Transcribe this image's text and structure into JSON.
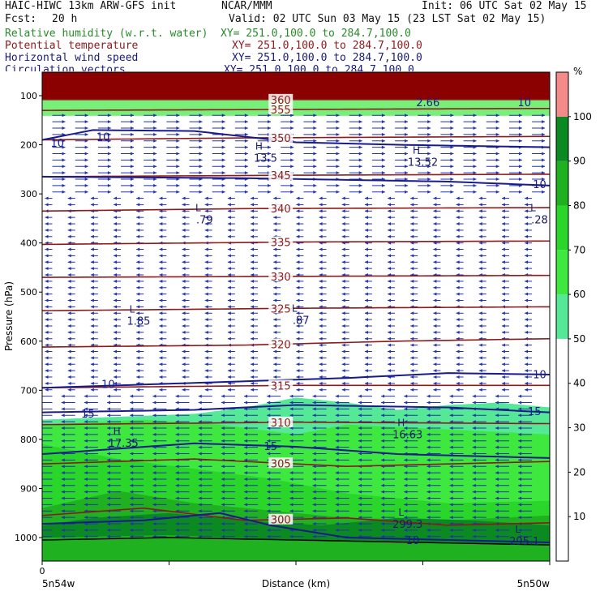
{
  "header": {
    "title": "HAIC-HIWC 13km ARW-GFS init",
    "org": "NCAR/MMM",
    "init": "Init: 06 UTC Sat 02 May 15",
    "fcst_label": "Fcst:",
    "fcst_value": "20 h",
    "valid": "Valid: 02 UTC Sun 03 May 15 (23 LST Sat 02 May 15)"
  },
  "fields": [
    {
      "name": "Relative humidity (w.r.t. water)",
      "xy": "XY= 251.0,100.0 to 284.7,100.0",
      "color": "#2a8a2a"
    },
    {
      "name": "Potential temperature",
      "xy": "XY= 251.0,100.0 to 284.7,100.0",
      "color": "#8b1a1a"
    },
    {
      "name": "Horizontal wind speed",
      "xy": "XY= 251.0,100.0 to 284.7,100.0",
      "color": "#1a1a7a"
    },
    {
      "name": "Circulation vectors",
      "xy": "XY= 251.0,100.0 to 284.7,100.0",
      "color": "#1a1a7a"
    }
  ],
  "chart_data": {
    "type": "heatmap",
    "ylabel": "Pressure (hPa)",
    "xlabel": "Distance (km)",
    "x_start_tick": "0",
    "x_left_label": "5n54w",
    "x_right_label": "5n50w",
    "y_ticks": [
      100,
      200,
      300,
      400,
      500,
      600,
      700,
      800,
      900,
      1000
    ],
    "y_range": [
      50,
      1050
    ],
    "x_range": [
      0,
      1
    ],
    "colorbar": {
      "unit": "%",
      "ticks": [
        10,
        20,
        30,
        40,
        50,
        60,
        70,
        80,
        90,
        100
      ],
      "bands": [
        {
          "from": 50,
          "to": 60,
          "color": "#55e896"
        },
        {
          "from": 60,
          "to": 70,
          "color": "#3ee83e"
        },
        {
          "from": 70,
          "to": 80,
          "color": "#2bd62b"
        },
        {
          "from": 80,
          "to": 90,
          "color": "#1fb11f"
        },
        {
          "from": 90,
          "to": 100,
          "color": "#0c8a22"
        },
        {
          "from": 100,
          "to": 110,
          "color": "#f48a8a"
        }
      ]
    },
    "rh_regions": [
      {
        "color": "#55e896",
        "top": [
          [
            0,
            760
          ],
          [
            0.3,
            748
          ],
          [
            0.4,
            735
          ],
          [
            0.5,
            715
          ],
          [
            0.6,
            725
          ],
          [
            0.7,
            740
          ],
          [
            0.8,
            730
          ],
          [
            0.9,
            725
          ],
          [
            1,
            735
          ]
        ],
        "bottom": 1050
      },
      {
        "color": "#3ee83e",
        "top": [
          [
            0,
            770
          ],
          [
            0.2,
            760
          ],
          [
            0.35,
            770
          ],
          [
            0.5,
            790
          ],
          [
            0.6,
            770
          ],
          [
            0.8,
            780
          ],
          [
            1,
            790
          ]
        ],
        "bottom": 1050
      },
      {
        "color": "#2bd62b",
        "top": [
          [
            0,
            810
          ],
          [
            0.15,
            840
          ],
          [
            0.3,
            860
          ],
          [
            0.45,
            880
          ],
          [
            0.6,
            910
          ],
          [
            0.8,
            930
          ],
          [
            1,
            925
          ]
        ],
        "bottom": 1050
      },
      {
        "color": "#1fb11f",
        "top": [
          [
            0,
            940
          ],
          [
            0.15,
            905
          ],
          [
            0.3,
            930
          ],
          [
            0.45,
            945
          ],
          [
            0.6,
            960
          ],
          [
            0.8,
            965
          ],
          [
            1,
            955
          ]
        ],
        "bottom": 1050
      },
      {
        "color": "#0c8a22",
        "top": [
          [
            0,
            975
          ],
          [
            0.1,
            960
          ],
          [
            0.25,
            950
          ],
          [
            0.4,
            965
          ],
          [
            0.55,
            975
          ],
          [
            0.7,
            960
          ],
          [
            0.85,
            965
          ],
          [
            1,
            975
          ]
        ],
        "bottom": [
          [
            0,
            1000
          ],
          [
            0.25,
            995
          ],
          [
            0.5,
            1005
          ],
          [
            0.75,
            1010
          ],
          [
            1,
            1015
          ]
        ]
      }
    ],
    "upper_band": {
      "color": "#8b0000",
      "from": 60,
      "to": 108
    },
    "theta_contours": [
      {
        "label": "360",
        "pts": [
          [
            0,
            108
          ],
          [
            1,
            108
          ]
        ]
      },
      {
        "label": "355",
        "pts": [
          [
            0,
            130
          ],
          [
            0.5,
            128
          ],
          [
            1,
            126
          ]
        ]
      },
      {
        "label": "350",
        "pts": [
          [
            0,
            190
          ],
          [
            0.4,
            186
          ],
          [
            1,
            183
          ]
        ]
      },
      {
        "label": "345",
        "pts": [
          [
            0,
            265
          ],
          [
            0.5,
            262
          ],
          [
            1,
            260
          ]
        ]
      },
      {
        "label": "340",
        "pts": [
          [
            0,
            335
          ],
          [
            0.4,
            330
          ],
          [
            1,
            328
          ]
        ]
      },
      {
        "label": "335",
        "pts": [
          [
            0,
            403
          ],
          [
            0.5,
            398
          ],
          [
            1,
            396
          ]
        ]
      },
      {
        "label": "330",
        "pts": [
          [
            0,
            470
          ],
          [
            0.5,
            468
          ],
          [
            1,
            466
          ]
        ]
      },
      {
        "label": "325",
        "pts": [
          [
            0,
            538
          ],
          [
            0.5,
            533
          ],
          [
            1,
            530
          ]
        ]
      },
      {
        "label": "320",
        "pts": [
          [
            0,
            612
          ],
          [
            0.4,
            608
          ],
          [
            0.7,
            600
          ],
          [
            1,
            595
          ]
        ]
      },
      {
        "label": "315",
        "pts": [
          [
            0,
            695
          ],
          [
            0.5,
            690
          ],
          [
            1,
            690
          ]
        ]
      },
      {
        "label": "310",
        "pts": [
          [
            0,
            770
          ],
          [
            0.5,
            765
          ],
          [
            1,
            768
          ]
        ]
      },
      {
        "label": "305",
        "pts": [
          [
            0,
            850
          ],
          [
            0.3,
            840
          ],
          [
            0.6,
            855
          ],
          [
            1,
            845
          ]
        ]
      },
      {
        "label": "300",
        "pts": [
          [
            0,
            955
          ],
          [
            0.2,
            940
          ],
          [
            0.4,
            965
          ],
          [
            0.6,
            960
          ],
          [
            0.8,
            975
          ],
          [
            1,
            970
          ]
        ]
      }
    ],
    "wind_contours": [
      {
        "label": "10",
        "pts": [
          [
            0,
            190
          ],
          [
            0.1,
            170
          ],
          [
            0.3,
            172
          ],
          [
            0.5,
            195
          ],
          [
            0.7,
            200
          ],
          [
            1,
            205
          ]
        ]
      },
      {
        "label": "10",
        "pts": [
          [
            0,
            265
          ],
          [
            0.4,
            268
          ],
          [
            0.8,
            275
          ],
          [
            1,
            283
          ]
        ]
      },
      {
        "label": "10",
        "pts": [
          [
            0,
            695
          ],
          [
            0.3,
            685
          ],
          [
            0.6,
            675
          ],
          [
            0.8,
            665
          ],
          [
            1,
            668
          ]
        ]
      },
      {
        "label": "15",
        "pts": [
          [
            0,
            745
          ],
          [
            0.3,
            740
          ],
          [
            0.5,
            730
          ],
          [
            0.8,
            735
          ],
          [
            1,
            745
          ]
        ]
      },
      {
        "label": "15",
        "pts": [
          [
            0,
            830
          ],
          [
            0.3,
            808
          ],
          [
            0.5,
            815
          ],
          [
            0.7,
            830
          ],
          [
            1,
            838
          ]
        ]
      },
      {
        "label": "10",
        "pts": [
          [
            0,
            972
          ],
          [
            0.2,
            965
          ],
          [
            0.35,
            950
          ],
          [
            0.45,
            975
          ],
          [
            0.6,
            1000
          ],
          [
            0.8,
            1005
          ],
          [
            1,
            1010
          ]
        ]
      }
    ],
    "surface_pts": [
      [
        0,
        1005
      ],
      [
        0.25,
        1000
      ],
      [
        0.5,
        1005
      ],
      [
        0.75,
        1010
      ],
      [
        1,
        1015
      ]
    ],
    "markers": [
      {
        "sym": "H",
        "value": "13.5",
        "x": 0.44,
        "p": 220
      },
      {
        "sym": "H",
        "value": "13.52",
        "x": 0.75,
        "p": 228
      },
      {
        "sym": "L",
        "value": ".79",
        "x": 0.32,
        "p": 345
      },
      {
        "sym": "L",
        "value": ".28",
        "x": 0.98,
        "p": 345
      },
      {
        "sym": "L",
        "value": "1.85",
        "x": 0.19,
        "p": 552
      },
      {
        "sym": "L",
        "value": ".87",
        "x": 0.51,
        "p": 550
      },
      {
        "sym": "H",
        "value": "17.35",
        "x": 0.16,
        "p": 800
      },
      {
        "sym": "H",
        "value": "16.63",
        "x": 0.72,
        "p": 783
      },
      {
        "sym": "L",
        "value": "299.3",
        "x": 0.72,
        "p": 965
      },
      {
        "sym": "L",
        "value": "295.1",
        "x": 0.95,
        "p": 1000
      }
    ],
    "extra_labels": [
      {
        "text": "2.66",
        "x": 0.76,
        "p": 113
      },
      {
        "text": "10",
        "x": 0.95,
        "p": 113
      },
      {
        "text": "10",
        "x": 0.03,
        "p": 196
      },
      {
        "text": "10",
        "x": 0.12,
        "p": 183
      },
      {
        "text": "10",
        "x": 0.98,
        "p": 280
      },
      {
        "text": "10",
        "x": 0.98,
        "p": 667
      },
      {
        "text": "10",
        "x": 0.13,
        "p": 687
      },
      {
        "text": "15",
        "x": 0.09,
        "p": 747
      },
      {
        "text": "15",
        "x": 0.97,
        "p": 742
      },
      {
        "text": "15",
        "x": 0.45,
        "p": 813
      },
      {
        "text": "10",
        "x": 0.73,
        "p": 1005
      }
    ]
  }
}
